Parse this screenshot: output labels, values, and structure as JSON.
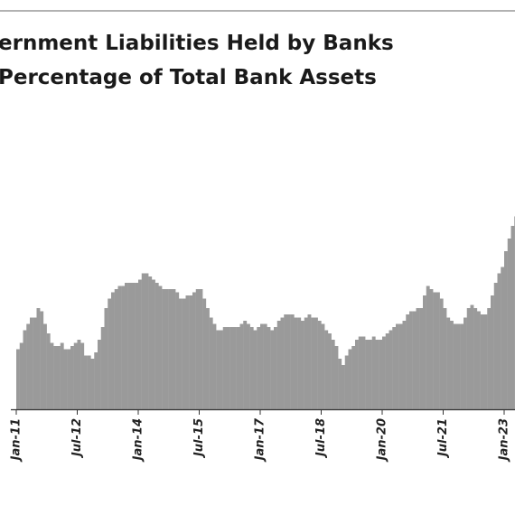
{
  "chart_data": {
    "type": "bar",
    "title": "ernment Liabilities Held by Banks",
    "subtitle": "Percentage of Total Bank Assets",
    "categories": [
      "Jan-11",
      null,
      null,
      null,
      null,
      null,
      null,
      null,
      null,
      null,
      null,
      null,
      null,
      null,
      null,
      null,
      null,
      null,
      "Jul-12",
      null,
      null,
      null,
      null,
      null,
      null,
      null,
      null,
      null,
      null,
      null,
      null,
      null,
      null,
      null,
      null,
      null,
      "Jan-14",
      null,
      null,
      null,
      null,
      null,
      null,
      null,
      null,
      null,
      null,
      null,
      null,
      null,
      null,
      null,
      null,
      null,
      "Jul-15",
      null,
      null,
      null,
      null,
      null,
      null,
      null,
      null,
      null,
      null,
      null,
      null,
      null,
      null,
      null,
      null,
      null,
      "Jan-17",
      null,
      null,
      null,
      null,
      null,
      null,
      null,
      null,
      null,
      null,
      null,
      null,
      null,
      null,
      null,
      null,
      null,
      "Jul-18",
      null,
      null,
      null,
      null,
      null,
      null,
      null,
      null,
      null,
      null,
      null,
      null,
      null,
      null,
      null,
      null,
      null,
      "Jan-20",
      null,
      null,
      null,
      null,
      null,
      null,
      null,
      null,
      null,
      null,
      null,
      null,
      null,
      null,
      null,
      null,
      null,
      "Jul-21",
      null,
      null,
      null,
      null,
      null,
      null,
      null,
      null,
      null,
      null,
      null,
      null,
      null,
      null,
      null,
      null,
      null,
      "Jan-23",
      null,
      null,
      null
    ],
    "values": [
      19,
      21,
      25,
      27,
      29,
      29,
      32,
      31,
      27,
      24,
      21,
      20,
      20,
      21,
      19,
      19,
      20,
      21,
      22,
      21,
      17,
      17,
      16,
      18,
      22,
      26,
      32,
      35,
      37,
      38,
      39,
      39,
      40,
      40,
      40,
      40,
      41,
      43,
      43,
      42,
      41,
      40,
      39,
      38,
      38,
      38,
      38,
      37,
      35,
      35,
      36,
      36,
      37,
      38,
      38,
      35,
      32,
      29,
      27,
      25,
      25,
      26,
      26,
      26,
      26,
      26,
      27,
      28,
      27,
      26,
      25,
      26,
      27,
      27,
      26,
      25,
      26,
      28,
      29,
      30,
      30,
      30,
      29,
      29,
      28,
      29,
      30,
      29,
      29,
      28,
      27,
      25,
      24,
      22,
      20,
      16,
      14,
      17,
      19,
      20,
      22,
      23,
      23,
      22,
      22,
      23,
      22,
      22,
      23,
      24,
      25,
      26,
      27,
      27,
      28,
      30,
      31,
      31,
      32,
      32,
      36,
      39,
      38,
      37,
      37,
      35,
      32,
      29,
      28,
      27,
      27,
      27,
      29,
      32,
      33,
      32,
      31,
      30,
      30,
      32,
      36,
      40,
      43,
      45,
      50,
      54,
      58,
      61
    ],
    "color": "#9a9a9a",
    "ylim": [
      0,
      100
    ]
  }
}
